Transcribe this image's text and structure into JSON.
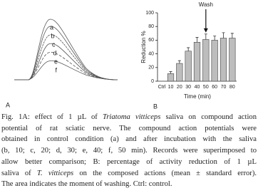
{
  "panel_a": {
    "panel_label": "A",
    "trace_labels": [
      "a",
      "b",
      "c",
      "d",
      "e",
      "f"
    ]
  },
  "chart_data": {
    "type": "bar",
    "panel_label": "B",
    "annotation": "Wash",
    "annotation_category": 5,
    "ylabel": "Reduction %",
    "xlabel": "Time (min)",
    "categories": [
      "Ctrl",
      "10",
      "20",
      "30",
      "40",
      "50",
      "60",
      "70",
      "80"
    ],
    "values": [
      0,
      11,
      26,
      44,
      57,
      61,
      60,
      63,
      63
    ],
    "errors": [
      null,
      3,
      4,
      5,
      7,
      8,
      6,
      8,
      7
    ],
    "color": "#bdbdbd",
    "ylim": [
      0,
      100
    ],
    "yticks": [
      0,
      20,
      40,
      60,
      80,
      100
    ]
  },
  "caption": {
    "lines": [
      [
        {
          "text": "Fig. 1A: effect of 1 µL of "
        },
        {
          "text": "Triatoma vitticeps",
          "italic": true
        },
        {
          "text": " saliva on compound action"
        }
      ],
      [
        {
          "text": "potential of rat sciatic nerve. The compound action potentials were"
        }
      ],
      [
        {
          "text": "obtained in control condition (a) and after incubation with the saliva"
        }
      ],
      [
        {
          "text": "(b, 10; c, 20; d, 30; e, 40; f, 50 min). Records were superimposed to"
        }
      ],
      [
        {
          "text": "allow better comparison; B: percentage of activity reduction of 1 µL"
        }
      ],
      [
        {
          "text": "saliva of "
        },
        {
          "text": "T. vitticeps",
          "italic": true
        },
        {
          "text": " on the composed actions (mean ± standard error)."
        }
      ],
      [
        {
          "text": "The area indicates the moment of washing. Ctrl: control."
        }
      ]
    ]
  }
}
